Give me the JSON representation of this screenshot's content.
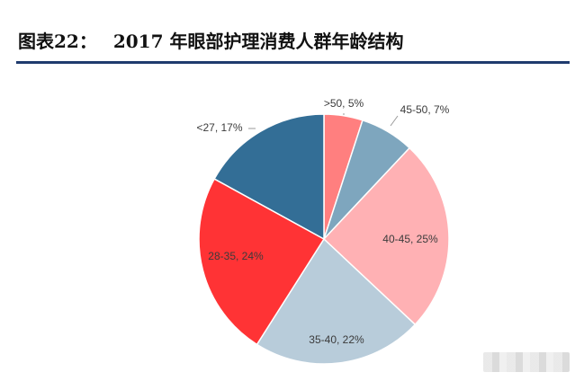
{
  "title": {
    "prefix": "图表22：",
    "text": "2017 年眼部护理消费人群年龄结构"
  },
  "chart_data": {
    "type": "pie",
    "title": "2017 年眼部护理消费人群年龄结构",
    "slices": [
      {
        "label": ">50, 5%",
        "category": ">50",
        "value": 5,
        "color": "#ff7f7f"
      },
      {
        "label": "45-50, 7%",
        "category": "45-50",
        "value": 7,
        "color": "#7ea6be"
      },
      {
        "label": "40-45, 25%",
        "category": "40-45",
        "value": 25,
        "color": "#ffb1b4"
      },
      {
        "label": "35-40, 22%",
        "category": "35-40",
        "value": 22,
        "color": "#b8ccda"
      },
      {
        "label": "28-35, 24%",
        "category": "28-35",
        "value": 24,
        "color": "#ff3335"
      },
      {
        "label": "<27, 17%",
        "category": "<27",
        "value": 17,
        "color": "#336e96"
      }
    ],
    "start_angle": "12 o'clock",
    "direction": "clockwise",
    "legend": "none"
  }
}
